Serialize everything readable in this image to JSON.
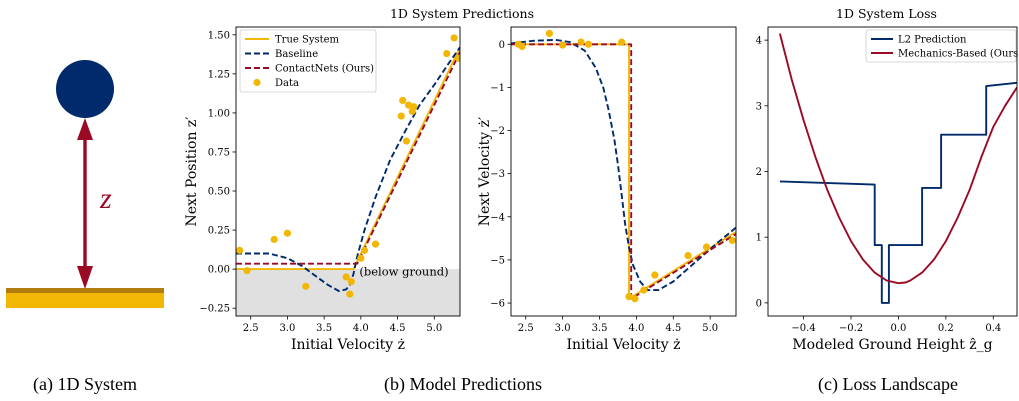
{
  "colors": {
    "true_system": "#f2b705",
    "baseline": "#002a6b",
    "contactnets": "#9b0a24",
    "data": "#f2b705",
    "ball": "#002a6b",
    "arrow": "#9b0a24",
    "ground": "#f2b705",
    "ground_edge": "#b07d0e",
    "shade": "#e0e0e0"
  },
  "panel_a": {
    "caption": "(a) 1D System",
    "z_label": "z"
  },
  "panel_b": {
    "caption": "(b) Model Predictions",
    "title": "1D System Predictions"
  },
  "panel_c": {
    "caption": "(c) Loss Landscape"
  },
  "chart_data": [
    {
      "type": "line",
      "ylabel": "Next Position z′",
      "xlabel": "Initial Velocity ż",
      "xlim": [
        2.3,
        5.35
      ],
      "ylim": [
        -0.3,
        1.55
      ],
      "xticks": [
        2.5,
        3.0,
        3.5,
        4.0,
        4.5,
        5.0
      ],
      "xtick_labels": [
        "2.5",
        "3.0",
        "3.5",
        "4.0",
        "4.5",
        "5.0"
      ],
      "yticks": [
        -0.25,
        0.0,
        0.25,
        0.5,
        0.75,
        1.0,
        1.25,
        1.5
      ],
      "ytick_labels": [
        "−0.25",
        "0.00",
        "0.25",
        "0.50",
        "0.75",
        "1.00",
        "1.25",
        "1.50"
      ],
      "annotation": "(below ground)",
      "series": [
        {
          "name": "True System",
          "style": "solid",
          "color_key": "true_system",
          "x": [
            2.3,
            3.9,
            5.35
          ],
          "y": [
            0.0,
            0.0,
            1.42
          ]
        },
        {
          "name": "Baseline",
          "style": "dashed",
          "color_key": "baseline",
          "x": [
            2.3,
            2.5,
            2.75,
            3.0,
            3.2,
            3.4,
            3.55,
            3.7,
            3.8,
            3.85,
            3.9,
            3.95,
            4.05,
            4.2,
            4.4,
            4.6,
            4.8,
            5.0,
            5.2,
            5.35
          ],
          "y": [
            0.1,
            0.1,
            0.1,
            0.07,
            0.02,
            -0.05,
            -0.1,
            -0.14,
            -0.13,
            -0.1,
            -0.03,
            0.08,
            0.25,
            0.46,
            0.7,
            0.88,
            1.05,
            1.18,
            1.32,
            1.42
          ]
        },
        {
          "name": "ContactNets (Ours)",
          "style": "dashed",
          "color_key": "contactnets",
          "x": [
            2.3,
            3.95,
            5.35
          ],
          "y": [
            0.035,
            0.035,
            1.39
          ]
        },
        {
          "name": "Data",
          "style": "points",
          "color_key": "data",
          "x": [
            2.35,
            2.45,
            2.82,
            3.0,
            3.25,
            3.8,
            3.85,
            3.87,
            4.0,
            4.05,
            4.2,
            4.55,
            4.57,
            4.62,
            4.65,
            4.7,
            4.72,
            5.17,
            5.27,
            5.33
          ],
          "y": [
            0.12,
            -0.01,
            0.19,
            0.23,
            -0.11,
            -0.05,
            -0.16,
            -0.08,
            0.07,
            0.12,
            0.16,
            0.98,
            1.08,
            0.82,
            1.05,
            1.01,
            1.04,
            1.38,
            1.48,
            1.35
          ]
        }
      ]
    },
    {
      "type": "line",
      "ylabel": "Next Velocity ż′",
      "xlabel": "Initial Velocity ż",
      "xlim": [
        2.3,
        5.35
      ],
      "ylim": [
        -6.3,
        0.4
      ],
      "xticks": [
        2.5,
        3.0,
        3.5,
        4.0,
        4.5,
        5.0
      ],
      "xtick_labels": [
        "2.5",
        "3.0",
        "3.5",
        "4.0",
        "4.5",
        "5.0"
      ],
      "yticks": [
        0,
        -1,
        -2,
        -3,
        -4,
        -5,
        -6
      ],
      "ytick_labels": [
        "0",
        "−1",
        "−2",
        "−3",
        "−4",
        "−5",
        "−6"
      ],
      "series": [
        {
          "name": "True System",
          "style": "solid",
          "color_key": "true_system",
          "x": [
            2.3,
            3.9,
            3.9,
            5.35
          ],
          "y": [
            0.0,
            0.0,
            -5.9,
            -4.35
          ]
        },
        {
          "name": "Baseline",
          "style": "dashed",
          "color_key": "baseline",
          "x": [
            2.3,
            2.6,
            2.9,
            3.1,
            3.3,
            3.45,
            3.55,
            3.62,
            3.7,
            3.75,
            3.8,
            3.85,
            3.9,
            3.95,
            4.05,
            4.15,
            4.3,
            4.5,
            4.8,
            5.1,
            5.35
          ],
          "y": [
            0.02,
            0.08,
            0.1,
            0.05,
            -0.15,
            -0.55,
            -1.0,
            -1.5,
            -2.2,
            -2.8,
            -3.5,
            -4.2,
            -4.7,
            -5.1,
            -5.5,
            -5.7,
            -5.7,
            -5.5,
            -5.05,
            -4.6,
            -4.25
          ]
        },
        {
          "name": "ContactNets (Ours)",
          "style": "dashed",
          "color_key": "contactnets",
          "x": [
            2.3,
            3.93,
            3.93,
            5.35
          ],
          "y": [
            0.0,
            0.0,
            -5.9,
            -4.4
          ]
        },
        {
          "name": "Data",
          "style": "points",
          "color_key": "data",
          "x": [
            2.4,
            2.45,
            2.82,
            3.0,
            3.25,
            3.35,
            3.8,
            3.9,
            3.98,
            4.1,
            4.25,
            4.7,
            4.95,
            5.3
          ],
          "y": [
            0.0,
            -0.05,
            0.25,
            -0.02,
            0.05,
            0.0,
            0.05,
            -5.85,
            -5.9,
            -5.7,
            -5.35,
            -4.9,
            -4.7,
            -4.55
          ]
        }
      ]
    },
    {
      "type": "line",
      "title": "1D System Loss",
      "xlabel": "Modeled Ground Height ẑ_g",
      "xlim": [
        -0.55,
        0.5
      ],
      "ylim": [
        -0.2,
        4.2
      ],
      "xticks": [
        -0.4,
        -0.2,
        0.0,
        0.2,
        0.4
      ],
      "xtick_labels": [
        "−0.4",
        "−0.2",
        "0.0",
        "0.2",
        "0.4"
      ],
      "yticks": [
        0,
        1,
        2,
        3,
        4
      ],
      "ytick_labels": [
        "0",
        "1",
        "2",
        "3",
        "4"
      ],
      "legend_position": "top-right",
      "series": [
        {
          "name": "L2 Prediction",
          "style": "solid",
          "color_key": "baseline",
          "x": [
            -0.5,
            -0.1,
            -0.1,
            -0.07,
            -0.07,
            -0.04,
            -0.04,
            0.0,
            0.0,
            0.1,
            0.1,
            0.18,
            0.18,
            0.37,
            0.37,
            0.5
          ],
          "y": [
            1.85,
            1.8,
            0.88,
            0.88,
            0.0,
            0.0,
            0.88,
            0.88,
            0.88,
            0.88,
            1.75,
            1.75,
            2.56,
            2.56,
            3.3,
            3.35
          ]
        },
        {
          "name": "Mechanics-Based (Ours)",
          "style": "solid",
          "color_key": "contactnets",
          "x": [
            -0.5,
            -0.45,
            -0.4,
            -0.35,
            -0.3,
            -0.25,
            -0.2,
            -0.15,
            -0.1,
            -0.05,
            0.0,
            0.03,
            0.05,
            0.1,
            0.15,
            0.2,
            0.25,
            0.3,
            0.35,
            0.4,
            0.45,
            0.5
          ],
          "y": [
            4.1,
            3.4,
            2.78,
            2.22,
            1.72,
            1.3,
            0.94,
            0.66,
            0.46,
            0.34,
            0.3,
            0.31,
            0.34,
            0.46,
            0.66,
            0.94,
            1.3,
            1.72,
            2.22,
            2.68,
            3.0,
            3.28
          ]
        }
      ]
    }
  ]
}
